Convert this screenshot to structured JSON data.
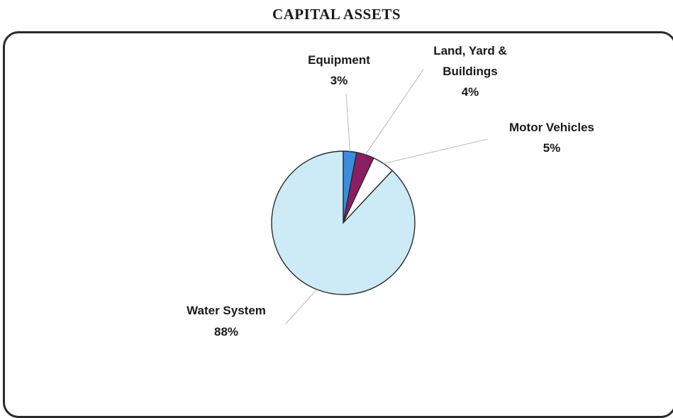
{
  "title": "CAPITAL ASSETS",
  "chart_data": {
    "type": "pie",
    "title": "CAPITAL ASSETS",
    "slices": [
      {
        "name": "Equipment",
        "value": 3,
        "label": "3%",
        "color": "#3a8ee0"
      },
      {
        "name": "Land, Yard & Buildings",
        "value": 4,
        "label": "4%",
        "color": "#8b1f63"
      },
      {
        "name": "Motor Vehicles",
        "value": 5,
        "label": "5%",
        "color": "#ffffff"
      },
      {
        "name": "Water System",
        "value": 88,
        "label": "88%",
        "color": "#cdeaf7"
      }
    ],
    "label_lines": [
      {
        "name": "Equipment"
      },
      {
        "name": "Land, Yard &"
      },
      {
        "name": "Buildings"
      },
      {
        "name": "Motor Vehicles"
      },
      {
        "name": "Water System"
      }
    ]
  }
}
